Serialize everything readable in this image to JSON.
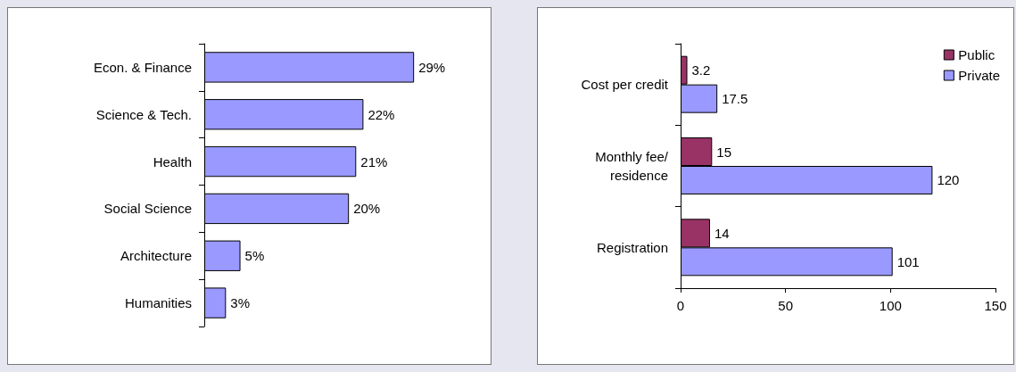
{
  "chart_data": [
    {
      "type": "bar",
      "orientation": "horizontal",
      "categories": [
        "Econ. & Finance",
        "Science & Tech.",
        "Health",
        "Social Science",
        "Architecture",
        "Humanities"
      ],
      "values": [
        29,
        22,
        21,
        20,
        5,
        3
      ],
      "value_labels": [
        "29%",
        "22%",
        "21%",
        "20%",
        "5%",
        "3%"
      ],
      "color": "#9999ff",
      "legend": false,
      "grid": false
    },
    {
      "type": "bar",
      "orientation": "horizontal",
      "categories": [
        "Cost per credit",
        "Monthly fee/residence",
        "Registration"
      ],
      "series": [
        {
          "name": "Public",
          "color": "#993366",
          "values": [
            3.2,
            15,
            14
          ]
        },
        {
          "name": "Private",
          "color": "#9999ff",
          "values": [
            17.5,
            120,
            101
          ]
        }
      ],
      "xlim": [
        0,
        150
      ],
      "xticks": [
        0,
        50,
        100,
        150
      ],
      "data_labels": true,
      "legend": "top right",
      "grid": false
    }
  ]
}
